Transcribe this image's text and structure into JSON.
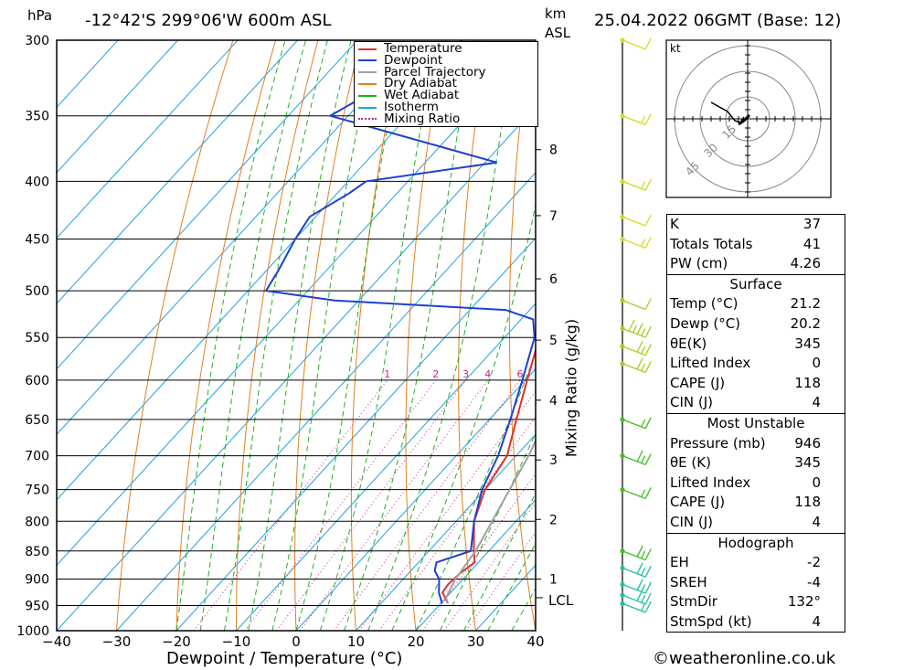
{
  "header": {
    "location": "-12°42'S 299°06'W 600m ASL",
    "datetime": "25.04.2022 06GMT (Base: 12)",
    "unit_hpa": "hPa",
    "unit_km": "km",
    "unit_asl": "ASL"
  },
  "legend": [
    {
      "label": "Temperature",
      "color": "#e03030",
      "style": "solid"
    },
    {
      "label": "Dewpoint",
      "color": "#2040d0",
      "style": "solid"
    },
    {
      "label": "Parcel Trajectory",
      "color": "#a0a0a0",
      "style": "solid"
    },
    {
      "label": "Dry Adiabat",
      "color": "#e08020",
      "style": "solid"
    },
    {
      "label": "Wet Adiabat",
      "color": "#20b020",
      "style": "solid"
    },
    {
      "label": "Isotherm",
      "color": "#20a0e0",
      "style": "solid"
    },
    {
      "label": "Mixing Ratio",
      "color": "#d02090",
      "style": "dotted"
    }
  ],
  "axes": {
    "xlabel": "Dewpoint / Temperature (°C)",
    "mixing_ratio_label": "Mixing Ratio (g/kg)",
    "lcl_label": "LCL"
  },
  "hodograph": {
    "unit": "kt",
    "rings": [
      "15",
      "30",
      "45"
    ]
  },
  "indices": {
    "general": [
      {
        "label": "K",
        "value": "37"
      },
      {
        "label": "Totals Totals",
        "value": "41"
      },
      {
        "label": "PW (cm)",
        "value": "4.26"
      }
    ],
    "surface": {
      "title": "Surface",
      "rows": [
        {
          "label": "Temp (°C)",
          "value": "21.2"
        },
        {
          "label": "Dewp (°C)",
          "value": "20.2"
        },
        {
          "label": "θE(K)",
          "value": "345"
        },
        {
          "label": "Lifted Index",
          "value": "0"
        },
        {
          "label": "CAPE (J)",
          "value": "118"
        },
        {
          "label": "CIN (J)",
          "value": "4"
        }
      ]
    },
    "most_unstable": {
      "title": "Most Unstable",
      "rows": [
        {
          "label": "Pressure (mb)",
          "value": "946"
        },
        {
          "label": "θE (K)",
          "value": "345"
        },
        {
          "label": "Lifted Index",
          "value": "0"
        },
        {
          "label": "CAPE (J)",
          "value": "118"
        },
        {
          "label": "CIN (J)",
          "value": "4"
        }
      ]
    },
    "hodograph": {
      "title": "Hodograph",
      "rows": [
        {
          "label": "EH",
          "value": "-2"
        },
        {
          "label": "SREH",
          "value": "-4"
        },
        {
          "label": "StmDir",
          "value": "132°"
        },
        {
          "label": "StmSpd (kt)",
          "value": "4"
        }
      ]
    }
  },
  "footer": "©weatheronline.co.uk",
  "chart_data": {
    "type": "line",
    "title": "-12°42'S 299°06'W 600m ASL",
    "xlabel": "Dewpoint / Temperature (°C)",
    "ylabel": "hPa",
    "xlim": [
      -40,
      40
    ],
    "ylim": [
      1000,
      300
    ],
    "x_ticks": [
      -40,
      -30,
      -20,
      -10,
      0,
      10,
      20,
      30,
      40
    ],
    "pressure_ticks": [
      300,
      350,
      400,
      450,
      500,
      550,
      600,
      650,
      700,
      750,
      800,
      850,
      900,
      950,
      1000
    ],
    "km_ticks": [
      {
        "km": "1",
        "p": 900
      },
      {
        "km": "2",
        "p": 797
      },
      {
        "km": "3",
        "p": 706
      },
      {
        "km": "4",
        "p": 625
      },
      {
        "km": "5",
        "p": 553
      },
      {
        "km": "6",
        "p": 488
      },
      {
        "km": "7",
        "p": 429
      },
      {
        "km": "8",
        "p": 375
      }
    ],
    "lcl_pressure": 935,
    "mixing_ratio_values": [
      "1",
      "2",
      "3",
      "4",
      "6",
      "8",
      "10",
      "16",
      "20",
      "25"
    ],
    "series": [
      {
        "name": "Temperature",
        "points": [
          [
            946,
            21.2
          ],
          [
            925,
            18.6
          ],
          [
            910,
            18.3
          ],
          [
            890,
            18.6
          ],
          [
            870,
            19.4
          ],
          [
            850,
            17.5
          ],
          [
            800,
            13.0
          ],
          [
            750,
            10.0
          ],
          [
            700,
            8.5
          ],
          [
            650,
            4.5
          ],
          [
            600,
            0.3
          ],
          [
            550,
            -4.2
          ],
          [
            520,
            -6.9
          ],
          [
            500,
            -7.6
          ],
          [
            480,
            -10.4
          ],
          [
            450,
            -14.0
          ],
          [
            420,
            -19.0
          ],
          [
            400,
            -21.1
          ],
          [
            380,
            -24.8
          ],
          [
            355,
            -29.7
          ]
        ]
      },
      {
        "name": "Dewpoint",
        "points": [
          [
            946,
            20.2
          ],
          [
            925,
            18.0
          ],
          [
            900,
            16.0
          ],
          [
            885,
            14.0
          ],
          [
            870,
            13.0
          ],
          [
            850,
            17.0
          ],
          [
            800,
            13.0
          ],
          [
            750,
            9.5
          ],
          [
            700,
            7.0
          ],
          [
            650,
            3.5
          ],
          [
            600,
            -0.5
          ],
          [
            550,
            -5.0
          ],
          [
            530,
            -8.0
          ],
          [
            520,
            -14.0
          ],
          [
            510,
            -44.0
          ],
          [
            500,
            -57.0
          ],
          [
            480,
            -58.0
          ],
          [
            450,
            -60.0
          ],
          [
            430,
            -61.0
          ],
          [
            410,
            -58.0
          ],
          [
            400,
            -57.0
          ],
          [
            385,
            -38.0
          ],
          [
            350,
            -73.0
          ],
          [
            300,
            -62.5
          ]
        ]
      },
      {
        "name": "Parcel Trajectory",
        "points": [
          [
            946,
            21.2
          ],
          [
            935,
            20.0
          ],
          [
            900,
            18.7
          ],
          [
            850,
            17.8
          ],
          [
            800,
            16.0
          ],
          [
            750,
            14.1
          ],
          [
            700,
            12.1
          ],
          [
            650,
            9.4
          ],
          [
            600,
            5.8
          ],
          [
            550,
            1.4
          ],
          [
            500,
            -3.6
          ],
          [
            450,
            -10.8
          ],
          [
            400,
            -19.7
          ],
          [
            355,
            -29.3
          ]
        ]
      }
    ],
    "wind_barbs": [
      {
        "p": 946,
        "speed_kt": 10
      },
      {
        "p": 930,
        "speed_kt": 15
      },
      {
        "p": 910,
        "speed_kt": 15
      },
      {
        "p": 880,
        "speed_kt": 15
      },
      {
        "p": 850,
        "speed_kt": 15
      },
      {
        "p": 750,
        "speed_kt": 10
      },
      {
        "p": 700,
        "speed_kt": 15
      },
      {
        "p": 650,
        "speed_kt": 10
      },
      {
        "p": 580,
        "speed_kt": 15
      },
      {
        "p": 560,
        "speed_kt": 15
      },
      {
        "p": 540,
        "speed_kt": 25
      },
      {
        "p": 510,
        "speed_kt": 5
      },
      {
        "p": 450,
        "speed_kt": 10
      },
      {
        "p": 430,
        "speed_kt": 5
      },
      {
        "p": 400,
        "speed_kt": 10
      },
      {
        "p": 350,
        "speed_kt": 10
      },
      {
        "p": 300,
        "speed_kt": 5
      }
    ]
  }
}
